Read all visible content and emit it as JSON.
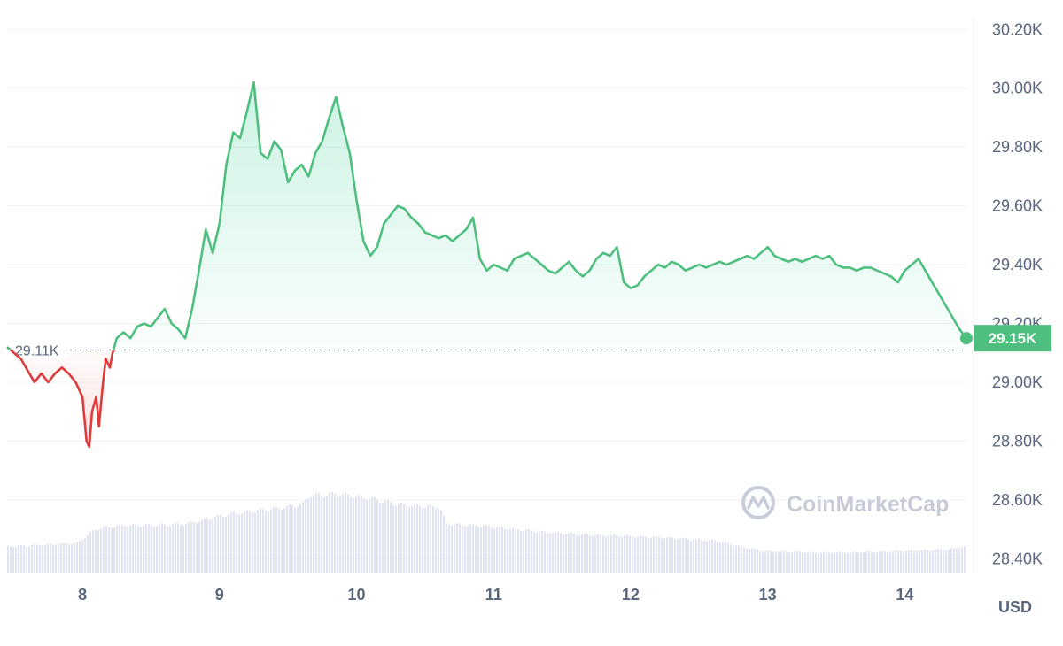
{
  "chart_data": {
    "type": "line",
    "currency_label": "USD",
    "watermark": "CoinMarketCap",
    "yticks": [
      "28.40K",
      "28.60K",
      "28.80K",
      "29.00K",
      "29.20K",
      "29.40K",
      "29.60K",
      "29.80K",
      "30.00K",
      "30.20K"
    ],
    "ytick_values": [
      28400,
      28600,
      28800,
      29000,
      29200,
      29400,
      29600,
      29800,
      30000,
      30200
    ],
    "xticks": [
      "8",
      "9",
      "10",
      "11",
      "12",
      "13",
      "14"
    ],
    "xtick_values": [
      8,
      9,
      10,
      11,
      12,
      13,
      14
    ],
    "xlim": [
      7.45,
      14.45
    ],
    "ylim": [
      28350,
      30240
    ],
    "reference": {
      "value": 29110,
      "label": "29.11K"
    },
    "current": {
      "value": 29150,
      "label": "29.15K"
    },
    "colors": {
      "up": "#16c784",
      "up_line": "#4fbf7f",
      "down": "#e03b3b",
      "volume": "#dfe3f2",
      "grid": "#eff2f5",
      "price_tag": "#4fbf7f"
    },
    "series": [
      {
        "values": [
          [
            7.45,
            29120
          ],
          [
            7.55,
            29080
          ],
          [
            7.6,
            29040
          ],
          [
            7.65,
            29000
          ],
          [
            7.7,
            29030
          ],
          [
            7.75,
            29000
          ],
          [
            7.8,
            29030
          ],
          [
            7.85,
            29050
          ],
          [
            7.9,
            29030
          ],
          [
            7.95,
            29000
          ],
          [
            8.0,
            28950
          ],
          [
            8.03,
            28800
          ],
          [
            8.05,
            28780
          ],
          [
            8.07,
            28900
          ],
          [
            8.1,
            28950
          ],
          [
            8.12,
            28850
          ],
          [
            8.15,
            29000
          ],
          [
            8.17,
            29080
          ],
          [
            8.2,
            29050
          ],
          [
            8.22,
            29100
          ],
          [
            8.25,
            29150
          ],
          [
            8.3,
            29170
          ],
          [
            8.35,
            29150
          ],
          [
            8.4,
            29190
          ],
          [
            8.45,
            29200
          ],
          [
            8.5,
            29190
          ],
          [
            8.55,
            29220
          ],
          [
            8.6,
            29250
          ],
          [
            8.65,
            29200
          ],
          [
            8.7,
            29180
          ],
          [
            8.75,
            29150
          ],
          [
            8.8,
            29250
          ],
          [
            8.85,
            29380
          ],
          [
            8.9,
            29520
          ],
          [
            8.95,
            29440
          ],
          [
            9.0,
            29540
          ],
          [
            9.05,
            29740
          ],
          [
            9.1,
            29850
          ],
          [
            9.15,
            29830
          ],
          [
            9.2,
            29920
          ],
          [
            9.25,
            30020
          ],
          [
            9.3,
            29780
          ],
          [
            9.35,
            29760
          ],
          [
            9.4,
            29820
          ],
          [
            9.45,
            29790
          ],
          [
            9.5,
            29680
          ],
          [
            9.55,
            29720
          ],
          [
            9.6,
            29740
          ],
          [
            9.65,
            29700
          ],
          [
            9.7,
            29780
          ],
          [
            9.75,
            29820
          ],
          [
            9.8,
            29900
          ],
          [
            9.85,
            29970
          ],
          [
            9.9,
            29870
          ],
          [
            9.95,
            29780
          ],
          [
            10.0,
            29620
          ],
          [
            10.05,
            29480
          ],
          [
            10.1,
            29430
          ],
          [
            10.15,
            29460
          ],
          [
            10.2,
            29540
          ],
          [
            10.25,
            29570
          ],
          [
            10.3,
            29600
          ],
          [
            10.35,
            29590
          ],
          [
            10.4,
            29560
          ],
          [
            10.45,
            29540
          ],
          [
            10.5,
            29510
          ],
          [
            10.55,
            29500
          ],
          [
            10.6,
            29490
          ],
          [
            10.65,
            29500
          ],
          [
            10.7,
            29480
          ],
          [
            10.75,
            29500
          ],
          [
            10.8,
            29520
          ],
          [
            10.85,
            29560
          ],
          [
            10.9,
            29420
          ],
          [
            10.95,
            29380
          ],
          [
            11.0,
            29400
          ],
          [
            11.05,
            29390
          ],
          [
            11.1,
            29380
          ],
          [
            11.15,
            29420
          ],
          [
            11.2,
            29430
          ],
          [
            11.25,
            29440
          ],
          [
            11.3,
            29420
          ],
          [
            11.35,
            29400
          ],
          [
            11.4,
            29380
          ],
          [
            11.45,
            29370
          ],
          [
            11.5,
            29390
          ],
          [
            11.55,
            29410
          ],
          [
            11.6,
            29380
          ],
          [
            11.65,
            29360
          ],
          [
            11.7,
            29380
          ],
          [
            11.75,
            29420
          ],
          [
            11.8,
            29440
          ],
          [
            11.85,
            29430
          ],
          [
            11.9,
            29460
          ],
          [
            11.95,
            29340
          ],
          [
            12.0,
            29320
          ],
          [
            12.05,
            29330
          ],
          [
            12.1,
            29360
          ],
          [
            12.15,
            29380
          ],
          [
            12.2,
            29400
          ],
          [
            12.25,
            29390
          ],
          [
            12.3,
            29410
          ],
          [
            12.35,
            29400
          ],
          [
            12.4,
            29380
          ],
          [
            12.45,
            29390
          ],
          [
            12.5,
            29400
          ],
          [
            12.55,
            29390
          ],
          [
            12.6,
            29400
          ],
          [
            12.65,
            29410
          ],
          [
            12.7,
            29400
          ],
          [
            12.75,
            29410
          ],
          [
            12.8,
            29420
          ],
          [
            12.85,
            29430
          ],
          [
            12.9,
            29420
          ],
          [
            12.95,
            29440
          ],
          [
            13.0,
            29460
          ],
          [
            13.05,
            29430
          ],
          [
            13.1,
            29420
          ],
          [
            13.15,
            29410
          ],
          [
            13.2,
            29420
          ],
          [
            13.25,
            29410
          ],
          [
            13.3,
            29420
          ],
          [
            13.35,
            29430
          ],
          [
            13.4,
            29420
          ],
          [
            13.45,
            29430
          ],
          [
            13.5,
            29400
          ],
          [
            13.55,
            29390
          ],
          [
            13.6,
            29390
          ],
          [
            13.65,
            29380
          ],
          [
            13.7,
            29390
          ],
          [
            13.75,
            29390
          ],
          [
            13.8,
            29380
          ],
          [
            13.85,
            29370
          ],
          [
            13.9,
            29360
          ],
          [
            13.95,
            29340
          ],
          [
            14.0,
            29380
          ],
          [
            14.05,
            29400
          ],
          [
            14.1,
            29420
          ],
          [
            14.15,
            29380
          ],
          [
            14.2,
            29340
          ],
          [
            14.25,
            29300
          ],
          [
            14.3,
            29260
          ],
          [
            14.35,
            29220
          ],
          [
            14.4,
            29180
          ],
          [
            14.45,
            29150
          ]
        ]
      }
    ],
    "volume": [
      [
        7.45,
        0.18
      ],
      [
        7.7,
        0.19
      ],
      [
        7.95,
        0.2
      ],
      [
        8.1,
        0.3
      ],
      [
        8.3,
        0.32
      ],
      [
        8.5,
        0.32
      ],
      [
        8.75,
        0.33
      ],
      [
        8.9,
        0.36
      ],
      [
        9.1,
        0.4
      ],
      [
        9.4,
        0.43
      ],
      [
        9.6,
        0.46
      ],
      [
        9.65,
        0.52
      ],
      [
        9.85,
        0.53
      ],
      [
        10.1,
        0.5
      ],
      [
        10.3,
        0.46
      ],
      [
        10.6,
        0.44
      ],
      [
        10.65,
        0.33
      ],
      [
        11.0,
        0.31
      ],
      [
        11.3,
        0.28
      ],
      [
        11.6,
        0.26
      ],
      [
        11.9,
        0.25
      ],
      [
        12.2,
        0.24
      ],
      [
        12.6,
        0.22
      ],
      [
        12.95,
        0.15
      ],
      [
        13.3,
        0.14
      ],
      [
        13.6,
        0.14
      ],
      [
        14.0,
        0.15
      ],
      [
        14.3,
        0.16
      ],
      [
        14.45,
        0.18
      ]
    ]
  }
}
